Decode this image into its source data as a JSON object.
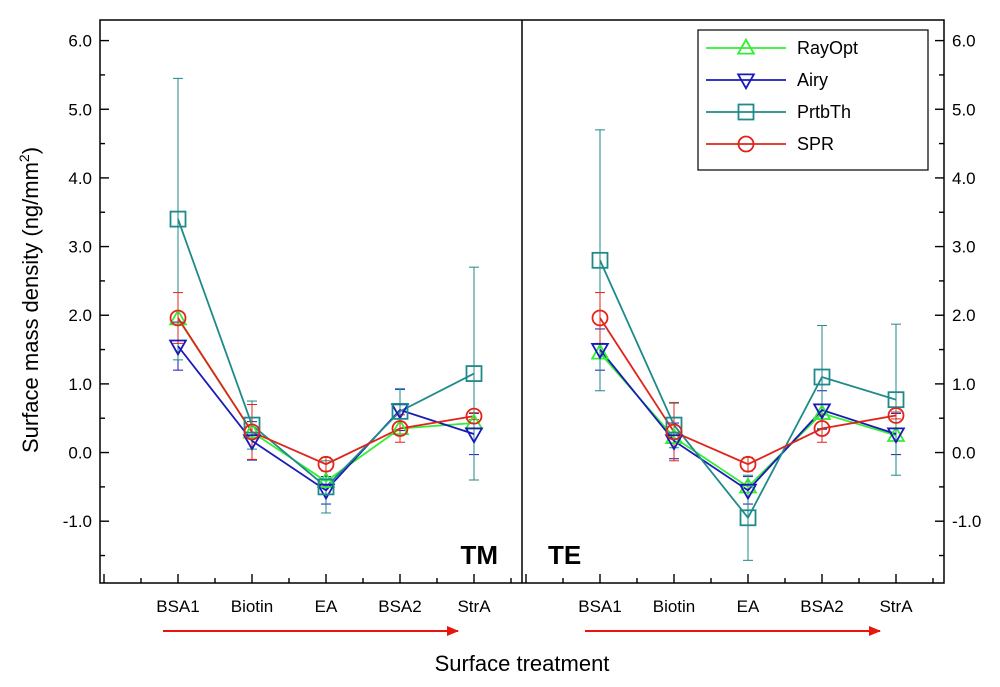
{
  "chart_data": {
    "type": "line",
    "xlabel": "Surface treatment",
    "ylabel": "Surface mass density  (ng/mm",
    "ylabel_sup": "2",
    "ylabel_close": ")",
    "ylim": [
      -1.9,
      6.3
    ],
    "yticks": [
      -1.0,
      0.0,
      1.0,
      2.0,
      3.0,
      4.0,
      5.0,
      6.0
    ],
    "ytick_labels": [
      "-1.0",
      "0.0",
      "1.0",
      "2.0",
      "3.0",
      "4.0",
      "5.0",
      "6.0"
    ],
    "categories": [
      "BSA1",
      "Biotin",
      "EA",
      "BSA2",
      "StrA"
    ],
    "legend": {
      "position": "top-right"
    },
    "series_style": {
      "RayOpt": {
        "color": "#33ee33",
        "marker": "triangle-up"
      },
      "Airy": {
        "color": "#1a1ab8",
        "marker": "triangle-down"
      },
      "PrtbTh": {
        "color": "#1f8a8a",
        "marker": "square"
      },
      "SPR": {
        "color": "#e0241b",
        "marker": "circle"
      }
    },
    "panels": [
      {
        "label": "TM",
        "series": [
          {
            "name": "RayOpt",
            "values": [
              1.95,
              0.3,
              -0.42,
              0.35,
              0.43
            ],
            "err": [
              0,
              0,
              0,
              0,
              0
            ]
          },
          {
            "name": "Airy",
            "values": [
              1.55,
              0.17,
              -0.55,
              0.62,
              0.27
            ],
            "err": [
              0.35,
              0.28,
              0.2,
              0.3,
              0.3
            ]
          },
          {
            "name": "PrtbTh",
            "values": [
              3.4,
              0.4,
              -0.5,
              0.6,
              1.15
            ],
            "err": [
              2.05,
              0.35,
              0.38,
              0.33,
              1.55
            ]
          },
          {
            "name": "SPR",
            "values": [
              1.96,
              0.3,
              -0.17,
              0.35,
              0.53
            ],
            "err": [
              0.37,
              0.4,
              0.1,
              0.2,
              0.05
            ]
          }
        ]
      },
      {
        "label": "TE",
        "series": [
          {
            "name": "RayOpt",
            "values": [
              1.45,
              0.22,
              -0.5,
              0.57,
              0.25
            ],
            "err": [
              0,
              0,
              0,
              0,
              0
            ]
          },
          {
            "name": "Airy",
            "values": [
              1.5,
              0.17,
              -0.55,
              0.62,
              0.27
            ],
            "err": [
              0.3,
              0.26,
              0.2,
              0.28,
              0.3
            ]
          },
          {
            "name": "PrtbTh",
            "values": [
              2.8,
              0.4,
              -0.95,
              1.1,
              0.77
            ],
            "err": [
              1.9,
              0.33,
              0.62,
              0.75,
              1.1
            ]
          },
          {
            "name": "SPR",
            "values": [
              1.96,
              0.3,
              -0.17,
              0.35,
              0.54
            ],
            "err": [
              0.37,
              0.42,
              0.1,
              0.2,
              0.05
            ]
          }
        ]
      }
    ]
  }
}
